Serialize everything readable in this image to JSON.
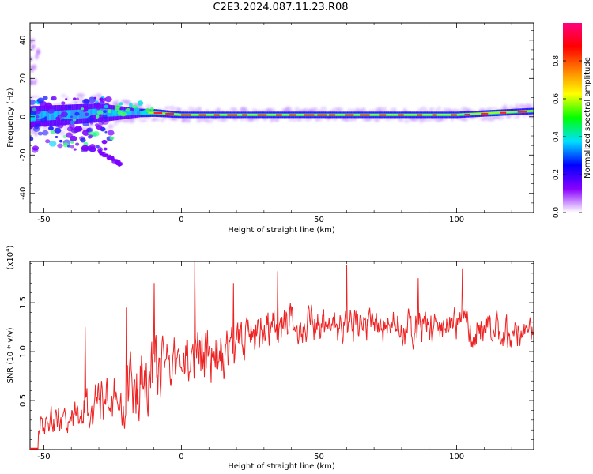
{
  "title": "C2E3.2024.087.11.23.R08",
  "chart_data": [
    {
      "type": "heatmap",
      "xlabel": "Height of straight line (km)",
      "ylabel": "Frequency (Hz)",
      "xlim": [
        -55,
        128
      ],
      "ylim": [
        -50,
        49
      ],
      "xticks": [
        -50,
        0,
        50,
        100
      ],
      "yticks": [
        -40,
        -20,
        0,
        20,
        40
      ],
      "colorbar": {
        "label": "Normalized spectral amplitude",
        "range": [
          0,
          1
        ],
        "ticks": [
          "0.0",
          "0.2",
          "0.4",
          "0.6",
          "0.8"
        ],
        "colors": [
          "#ffffff",
          "#8800ff",
          "#0000ff",
          "#00e0ff",
          "#00ff00",
          "#ffff00",
          "#ff8000",
          "#ff0000",
          "#ff0080"
        ]
      },
      "ridge": {
        "center_freq_by_height": [
          [
            -55,
            0
          ],
          [
            -30,
            2
          ],
          [
            -10,
            2
          ],
          [
            0,
            1
          ],
          [
            50,
            1
          ],
          [
            100,
            1
          ],
          [
            128,
            3
          ]
        ],
        "bandwidth_hz_by_height": [
          [
            -55,
            10
          ],
          [
            -30,
            9
          ],
          [
            -15,
            4
          ],
          [
            0,
            3
          ],
          [
            128,
            3
          ]
        ]
      },
      "features": [
        {
          "name": "scattered echoes",
          "height_range": [
            -55,
            -25
          ],
          "freq_range": [
            -18,
            10
          ]
        },
        {
          "name": "streak",
          "height_range": [
            -30,
            -22
          ],
          "freq_range": [
            -25,
            -18
          ]
        },
        {
          "name": "high-frequency echoes",
          "height_range": [
            -55,
            -52
          ],
          "freq_range": [
            -10,
            40
          ]
        }
      ]
    },
    {
      "type": "line",
      "xlabel": "Height of straight line (km)",
      "ylabel": "SNR (10 * v/v)",
      "y_multiplier": "(x10^4)",
      "xlim": [
        -55,
        128
      ],
      "ylim": [
        0,
        1.92
      ],
      "xticks": [
        -50,
        0,
        50,
        100
      ],
      "yticks": [
        0.5,
        1.0,
        1.5
      ],
      "ytick_labels": [
        "0.5",
        "1.0",
        "1.5"
      ],
      "color": "#ee2222",
      "envelope": {
        "x": [
          -55,
          -50,
          -40,
          -30,
          -20,
          -15,
          -10,
          -5,
          0,
          5,
          10,
          20,
          30,
          40,
          50,
          60,
          70,
          80,
          90,
          100,
          110,
          120,
          128
        ],
        "low": [
          0.05,
          0.08,
          0.1,
          0.1,
          0.15,
          0.2,
          0.3,
          0.55,
          0.6,
          0.55,
          0.5,
          0.65,
          0.95,
          1.0,
          1.0,
          0.95,
          1.0,
          0.95,
          1.0,
          1.0,
          0.95,
          0.95,
          1.0
        ],
        "high": [
          0.3,
          0.45,
          0.65,
          0.8,
          1.05,
          1.2,
          1.3,
          1.25,
          1.25,
          1.4,
          1.35,
          1.4,
          1.5,
          1.6,
          1.55,
          1.55,
          1.5,
          1.55,
          1.5,
          1.55,
          1.5,
          1.45,
          1.4
        ]
      },
      "peaks": [
        {
          "x": 4.8,
          "y": 1.92
        },
        {
          "x": 60,
          "y": 1.88
        },
        {
          "x": 102,
          "y": 1.85
        },
        {
          "x": 35,
          "y": 1.82
        },
        {
          "x": -10,
          "y": 1.7
        },
        {
          "x": -35,
          "y": 1.25
        },
        {
          "x": -20,
          "y": 1.45
        },
        {
          "x": 19,
          "y": 1.7
        },
        {
          "x": 86,
          "y": 1.75
        }
      ]
    }
  ]
}
